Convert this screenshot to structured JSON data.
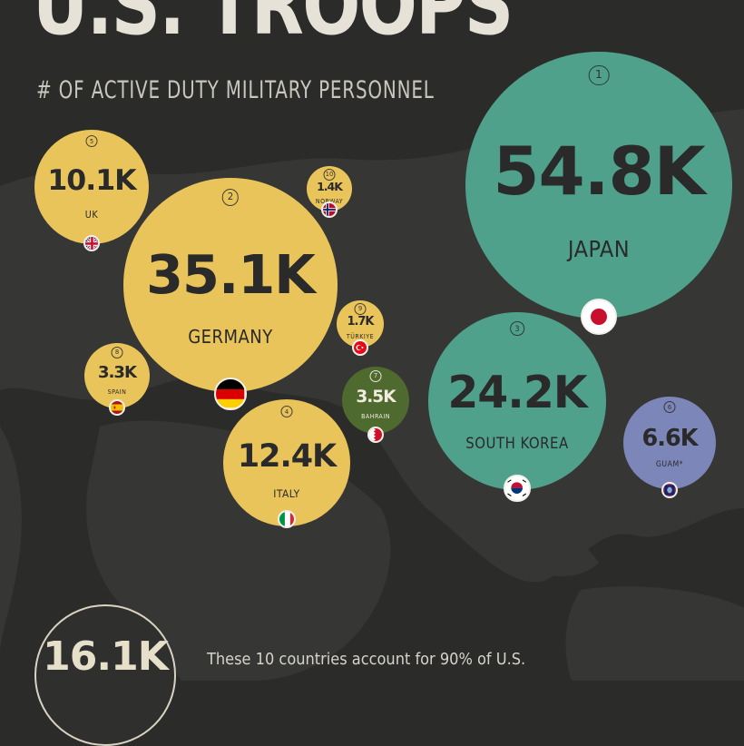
{
  "header": {
    "title": "U.S. TROOPS",
    "subtitle": "# OF ACTIVE DUTY MILITARY PERSONNEL"
  },
  "colors": {
    "background": "#2b2b2a",
    "land": "#3a3a38",
    "europe_bubble": "#e9c45b",
    "asia_bubble": "#4fa18b",
    "guam_bubble": "#7d86b8",
    "bahrain_bubble": "#4f6a2f"
  },
  "chart_data": {
    "type": "bubble",
    "title": "U.S. TROOPS",
    "subtitle": "# OF ACTIVE DUTY MILITARY PERSONNEL",
    "unit": "active duty military personnel",
    "points": [
      {
        "rank": "1",
        "country": "JAPAN",
        "label": "54.8K",
        "value": 54800
      },
      {
        "rank": "2",
        "country": "GERMANY",
        "label": "35.1K",
        "value": 35100
      },
      {
        "rank": "3",
        "country": "SOUTH KOREA",
        "label": "24.2K",
        "value": 24200
      },
      {
        "rank": "4",
        "country": "ITALY",
        "label": "12.4K",
        "value": 12400
      },
      {
        "rank": "5",
        "country": "UK",
        "label": "10.1K",
        "value": 10100
      },
      {
        "rank": "6",
        "country": "GUAM*",
        "label": "6.6K",
        "value": 6600
      },
      {
        "rank": "7",
        "country": "BAHRAIN",
        "label": "3.5K",
        "value": 3500
      },
      {
        "rank": "8",
        "country": "SPAIN",
        "label": "3.3K",
        "value": 3300
      },
      {
        "rank": "9",
        "country": "TÜRKIYE",
        "label": "1.7K",
        "value": 1700
      },
      {
        "rank": "10",
        "country": "NORWAY",
        "label": "1.4K",
        "value": 1400
      }
    ],
    "total": {
      "label": "16.1K"
    }
  },
  "footnote": {
    "text": "These 10 countries account for 90% of U.S."
  }
}
